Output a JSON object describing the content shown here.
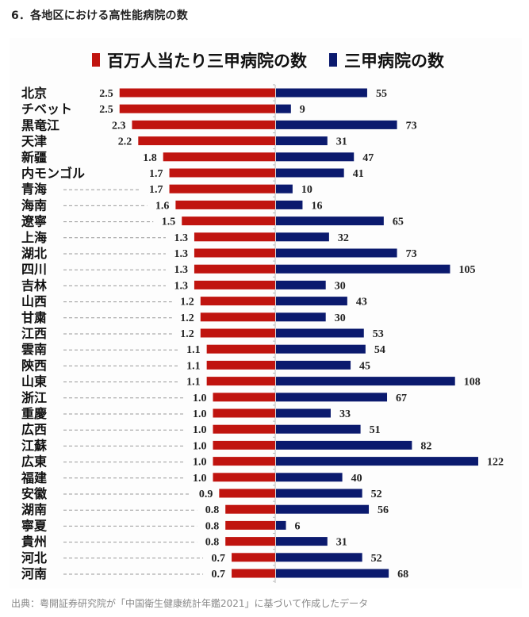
{
  "heading": "6．各地区における高性能病院の数",
  "footer": "出典：粤開証券研究院が「中国衛生健康統計年鑑2021」に基づいて作成したデータ",
  "colors": {
    "red": "#C0140F",
    "blue": "#0B1A6E",
    "axis": "#bbbbbb",
    "leader": "#999999"
  },
  "chart_data": {
    "type": "bar",
    "orientation": "horizontal-diverging",
    "title": "",
    "xlabel": "",
    "ylabel": "",
    "grid": false,
    "legend_position": "top-center",
    "categories": [
      "北京",
      "チベット",
      "黒竜江",
      "天津",
      "新疆",
      "内モンゴル",
      "青海",
      "海南",
      "遼寧",
      "上海",
      "湖北",
      "四川",
      "吉林",
      "山西",
      "甘粛",
      "江西",
      "雲南",
      "陝西",
      "山東",
      "浙江",
      "重慶",
      "広西",
      "江蘇",
      "広東",
      "福建",
      "安徽",
      "湖南",
      "寧夏",
      "貴州",
      "河北",
      "河南"
    ],
    "series": [
      {
        "name": "百万人当たり三甲病院の数",
        "color": "#C0140F",
        "direction": "left",
        "values": [
          2.5,
          2.5,
          2.3,
          2.2,
          1.8,
          1.7,
          1.7,
          1.6,
          1.5,
          1.3,
          1.3,
          1.3,
          1.3,
          1.2,
          1.2,
          1.2,
          1.1,
          1.1,
          1.1,
          1.0,
          1.0,
          1.0,
          1.0,
          1.0,
          1.0,
          0.9,
          0.8,
          0.8,
          0.8,
          0.7,
          0.7
        ],
        "labels": [
          "2.5",
          "2.5",
          "2.3",
          "2.2",
          "1.8",
          "1.7",
          "1.7",
          "1.6",
          "1.5",
          "1.3",
          "1.3",
          "1.3",
          "1.3",
          "1.2",
          "1.2",
          "1.2",
          "1.1",
          "1.1",
          "1.1",
          "1.0",
          "1.0",
          "1.0",
          "1.0",
          "1.0",
          "1.0",
          "0.9",
          "0.8",
          "0.8",
          "0.8",
          "0.7",
          "0.7"
        ]
      },
      {
        "name": "三甲病院の数",
        "color": "#0B1A6E",
        "direction": "right",
        "values": [
          55,
          9,
          73,
          31,
          47,
          41,
          10,
          16,
          65,
          32,
          73,
          105,
          30,
          43,
          30,
          53,
          54,
          45,
          108,
          67,
          33,
          51,
          82,
          122,
          40,
          52,
          56,
          6,
          31,
          52,
          68
        ],
        "labels": [
          "55",
          "9",
          "73",
          "31",
          "47",
          "41",
          "10",
          "16",
          "65",
          "32",
          "73",
          "105",
          "30",
          "43",
          "30",
          "53",
          "54",
          "45",
          "108",
          "67",
          "33",
          "51",
          "82",
          "122",
          "40",
          "52",
          "56",
          "6",
          "31",
          "52",
          "68"
        ]
      }
    ]
  }
}
